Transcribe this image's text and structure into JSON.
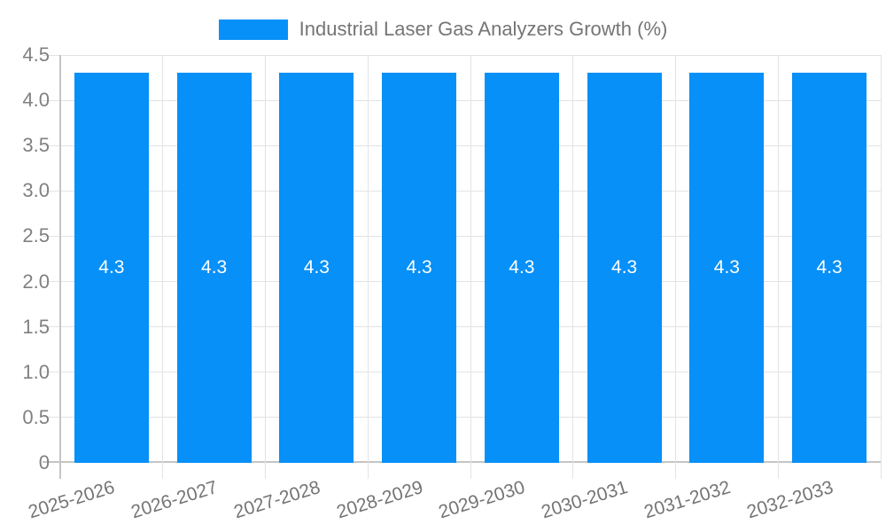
{
  "legend": {
    "label": "Industrial Laser Gas Analyzers Growth (%)"
  },
  "chart_data": {
    "type": "bar",
    "title": "Industrial Laser Gas Analyzers Growth (%)",
    "categories": [
      "2025-2026",
      "2026-2027",
      "2027-2028",
      "2028-2029",
      "2029-2030",
      "2030-2031",
      "2031-2032",
      "2032-2033"
    ],
    "values": [
      4.3,
      4.3,
      4.3,
      4.3,
      4.3,
      4.3,
      4.3,
      4.3
    ],
    "bar_labels": [
      "4.3",
      "4.3",
      "4.3",
      "4.3",
      "4.3",
      "4.3",
      "4.3",
      "4.3"
    ],
    "xlabel": "",
    "ylabel": "",
    "ylim": [
      0,
      4.5
    ],
    "y_ticks": [
      0,
      0.5,
      1,
      1.5,
      2,
      2.5,
      3,
      3.5,
      4,
      4.5
    ],
    "y_tick_labels": [
      "0",
      "0.5",
      "1.0",
      "1.5",
      "2.0",
      "2.5",
      "3.0",
      "3.5",
      "4.0",
      "4.5"
    ],
    "grid": true,
    "legend_position": "top",
    "colors": {
      "bar": "#0690f8",
      "grid": "#e3e3e3",
      "axis": "#c4c4c4",
      "y_tick_text": "#808080",
      "x_tick_text": "#757575",
      "legend_text": "#757575",
      "bar_label_text": "#ffffff",
      "background": "#ffffff"
    }
  }
}
